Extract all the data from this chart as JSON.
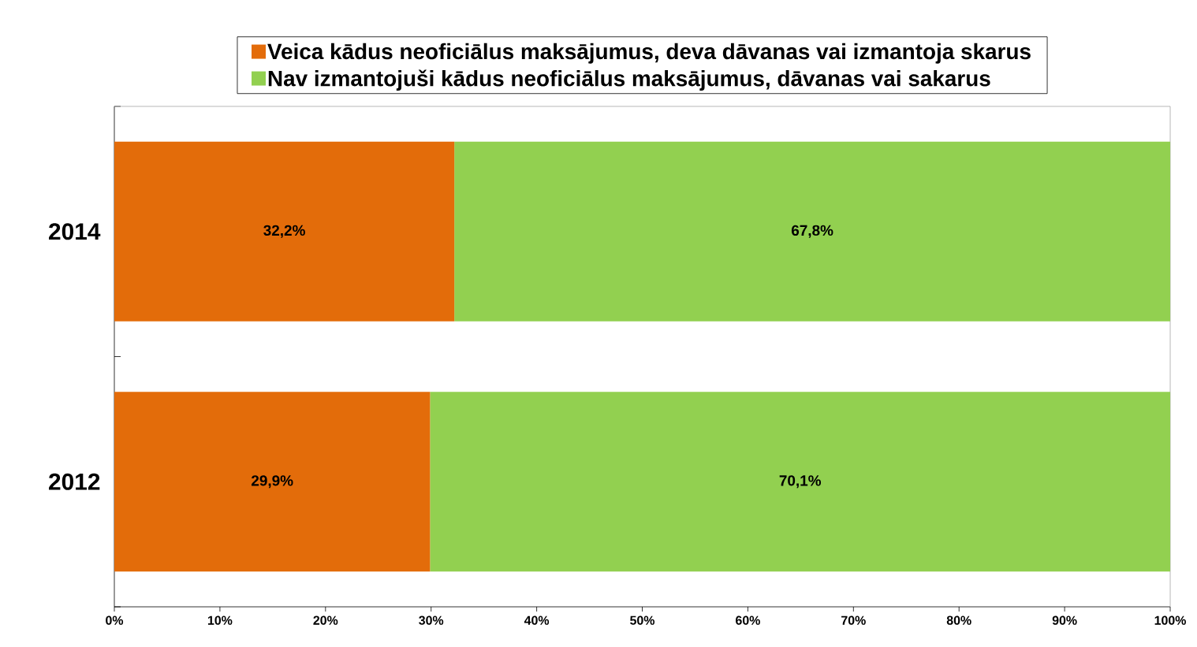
{
  "chart_data": {
    "type": "bar",
    "orientation": "horizontal",
    "stacked": true,
    "categories": [
      "2014",
      "2012"
    ],
    "series": [
      {
        "name": "Veica kādus neoficiālus maksājumus, deva dāvanas vai izmantoja skarus",
        "color": "#e36c0a",
        "values": [
          32.2,
          29.9
        ],
        "value_labels": [
          "32,2%",
          "29,9%"
        ]
      },
      {
        "name": "Nav izmantojuši kādus neoficiālus maksājumus, dāvanas vai sakarus",
        "color": "#92d050",
        "values": [
          67.8,
          70.1
        ],
        "value_labels": [
          "67,8%",
          "70,1%"
        ]
      }
    ],
    "xlim": [
      0,
      100
    ],
    "xticks": [
      {
        "value": 0,
        "label": "0%"
      },
      {
        "value": 10,
        "label": "10%"
      },
      {
        "value": 20,
        "label": "20%"
      },
      {
        "value": 30,
        "label": "30%"
      },
      {
        "value": 40,
        "label": "40%"
      },
      {
        "value": 50,
        "label": "50%"
      },
      {
        "value": 60,
        "label": "60%"
      },
      {
        "value": 70,
        "label": "70%"
      },
      {
        "value": 80,
        "label": "80%"
      },
      {
        "value": 90,
        "label": "90%"
      },
      {
        "value": 100,
        "label": "100%"
      }
    ],
    "grid": false,
    "legend": "top"
  }
}
